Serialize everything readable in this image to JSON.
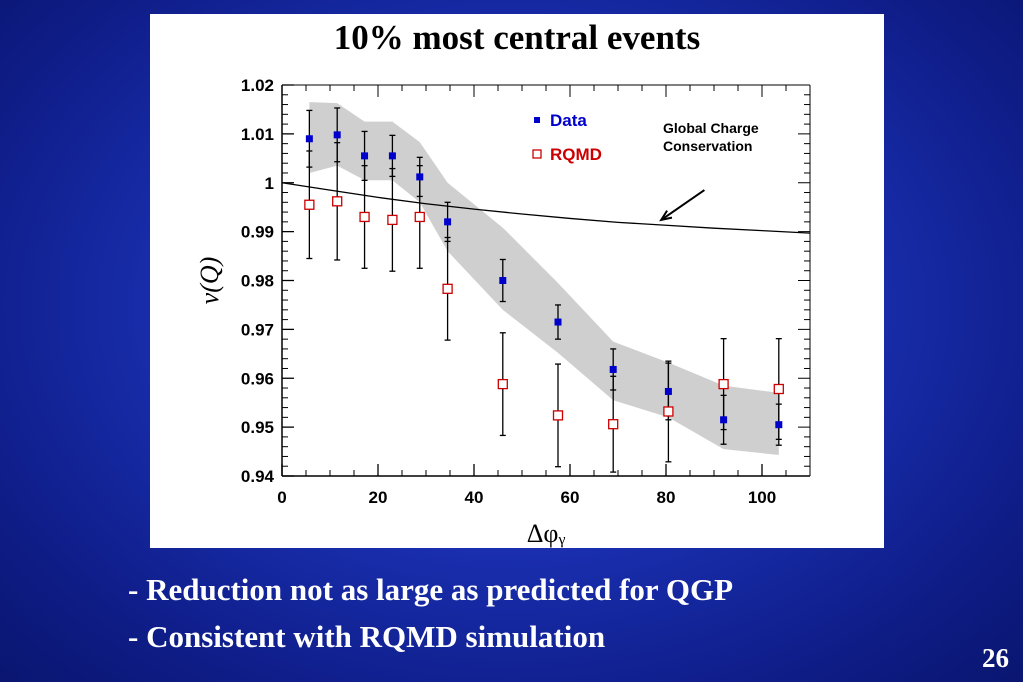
{
  "slide": {
    "title": "10% most central events",
    "bullets": [
      "- Reduction not as large as predicted for QGP",
      "- Consistent with RQMD simulation"
    ],
    "page_number": "26"
  },
  "chart_data": {
    "type": "scatter",
    "xlabel": "Δφᵧ",
    "ylabel": "ν(Q)",
    "xlim": [
      0,
      110
    ],
    "ylim": [
      0.94,
      1.02
    ],
    "xticks": [
      "0",
      "20",
      "40",
      "60",
      "80",
      "100"
    ],
    "yticks": [
      "0.94",
      "0.95",
      "0.96",
      "0.97",
      "0.98",
      "0.99",
      "1",
      "1.01",
      "1.02"
    ],
    "legend_position": "top-right",
    "grid": false,
    "series": [
      {
        "name": "Data",
        "color": "#0000cc",
        "marker": "filled-square",
        "x": [
          5.7,
          11.5,
          17.2,
          23.0,
          28.7,
          34.5,
          46.0,
          57.5,
          69.0,
          80.5,
          92.0,
          103.5
        ],
        "y": [
          1.009,
          1.0098,
          1.0055,
          1.0055,
          1.0012,
          0.992,
          0.98,
          0.9715,
          0.9618,
          0.9573,
          0.9515,
          0.9505
        ],
        "err": [
          0.0058,
          0.0055,
          0.005,
          0.0042,
          0.004,
          0.004,
          0.0043,
          0.0035,
          0.0042,
          0.0058,
          0.005,
          0.0042
        ]
      },
      {
        "name": "RQMD",
        "color": "#cc0000",
        "marker": "open-square",
        "x": [
          5.7,
          11.5,
          17.2,
          23.0,
          28.7,
          34.5,
          46.0,
          57.5,
          69.0,
          80.5,
          92.0,
          103.5
        ],
        "y": [
          0.9955,
          0.9962,
          0.993,
          0.9924,
          0.993,
          0.9783,
          0.9588,
          0.9524,
          0.9506,
          0.9532,
          0.9588,
          0.9578
        ],
        "err": [
          0.011,
          0.012,
          0.0105,
          0.0105,
          0.0105,
          0.0105,
          0.0105,
          0.0105,
          0.0098,
          0.0103,
          0.0093,
          0.0103
        ]
      }
    ],
    "band": {
      "x": [
        5.7,
        11.5,
        17.2,
        23.0,
        28.7,
        34.5,
        46.0,
        57.5,
        69.0,
        80.5,
        92.0,
        103.5
      ],
      "lower": [
        1.002,
        1.0035,
        1.0005,
        1.0005,
        0.996,
        0.986,
        0.974,
        0.9652,
        0.9555,
        0.952,
        0.9455,
        0.9443
      ],
      "upper": [
        1.0165,
        1.0163,
        1.0125,
        1.0125,
        1.0083,
        1.0,
        0.9908,
        0.9795,
        0.9675,
        0.9632,
        0.9585,
        0.957
      ]
    },
    "curve": {
      "name": "Global Charge Conservation",
      "x": [
        0,
        10,
        20,
        30,
        40,
        50,
        60,
        70,
        80,
        90,
        100,
        110
      ],
      "y": [
        1.0,
        0.9985,
        0.997,
        0.9957,
        0.9946,
        0.9936,
        0.9927,
        0.9919,
        0.9913,
        0.9907,
        0.9902,
        0.9897
      ]
    },
    "annotations": [
      {
        "lines": [
          "Global Charge",
          "Conservation"
        ],
        "arrow_from": [
          88,
          0.9985
        ],
        "arrow_to": [
          79,
          0.9924
        ]
      }
    ]
  },
  "colors": {
    "background": "#1a2fb0",
    "band": "#cfcfcf",
    "data": "#0000cc",
    "rqmd": "#cc0000"
  }
}
